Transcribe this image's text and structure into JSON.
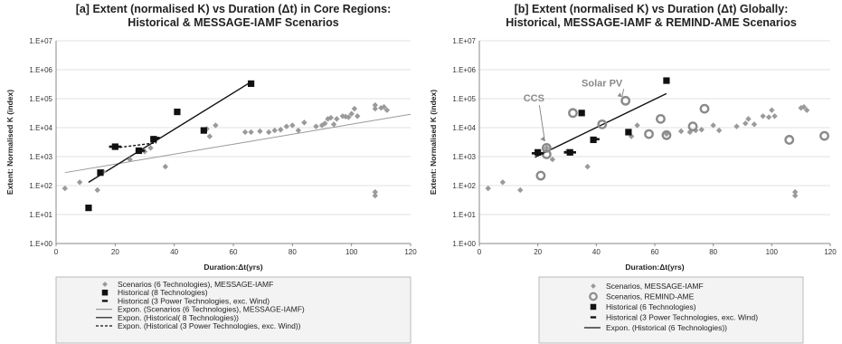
{
  "chart_data": [
    {
      "type": "scatter",
      "title": "[a] Extent (normalised K) vs Duration (Δt) in Core Regions:",
      "subtitle": "Historical & MESSAGE-IAMF Scenarios",
      "xlabel": "Duration:Δt(yrs)",
      "ylabel": "Extent:   Normalised K (index)",
      "xlim": [
        0,
        120
      ],
      "ylim": [
        1,
        10000000
      ],
      "yscale": "log",
      "xticks": [
        "0",
        "20",
        "40",
        "60",
        "80",
        "100",
        "120"
      ],
      "yticks": [
        "1.E+00",
        "1.E+01",
        "1.E+02",
        "1.E+03",
        "1.E+04",
        "1.E+05",
        "1.E+06",
        "1.E+07"
      ],
      "grid": "horizontal",
      "legend_position": "bottom",
      "series": [
        {
          "name": "Scenarios (6 Technologies), MESSAGE-IAMF",
          "kind": "points",
          "marker": "diamond",
          "color": "#9a9a9a",
          "points": [
            [
              3,
              80
            ],
            [
              8,
              130
            ],
            [
              14,
              70
            ],
            [
              16,
              300
            ],
            [
              25,
              800
            ],
            [
              30,
              1500
            ],
            [
              32,
              2000
            ],
            [
              37,
              450
            ],
            [
              51,
              9000
            ],
            [
              52,
              5000
            ],
            [
              54,
              12000
            ],
            [
              64,
              7000
            ],
            [
              66,
              7000
            ],
            [
              69,
              7500
            ],
            [
              72,
              7000
            ],
            [
              74,
              8000
            ],
            [
              76,
              8500
            ],
            [
              78,
              11000
            ],
            [
              80,
              12000
            ],
            [
              82,
              8000
            ],
            [
              84,
              15000
            ],
            [
              88,
              11000
            ],
            [
              90,
              12000
            ],
            [
              91,
              14000
            ],
            [
              92,
              20000
            ],
            [
              93,
              22000
            ],
            [
              94,
              13000
            ],
            [
              95,
              20000
            ],
            [
              97,
              25000
            ],
            [
              98,
              24000
            ],
            [
              99,
              23000
            ],
            [
              100,
              30000
            ],
            [
              101,
              45000
            ],
            [
              102,
              25000
            ],
            [
              108,
              60000
            ],
            [
              108,
              45000
            ],
            [
              110,
              48000
            ],
            [
              111,
              52000
            ],
            [
              112,
              40000
            ],
            [
              108,
              60
            ],
            [
              108,
              45
            ]
          ]
        },
        {
          "name": "Historical (8 Technologies)",
          "kind": "points",
          "marker": "square",
          "color": "#111111",
          "points": [
            [
              11,
              17
            ],
            [
              15,
              280
            ],
            [
              20,
              2200
            ],
            [
              28,
              1600
            ],
            [
              33,
              4000
            ],
            [
              41,
              35000
            ],
            [
              50,
              8000
            ],
            [
              66,
              330000
            ]
          ]
        },
        {
          "name": "Historical (3 Power Technologies, exc. Wind)",
          "kind": "points",
          "marker": "dash",
          "color": "#111111",
          "points": [
            [
              19,
              2200
            ],
            [
              20,
              2200
            ],
            [
              21,
              2200
            ],
            [
              28,
              1500
            ],
            [
              29,
              1600
            ],
            [
              33,
              4200
            ],
            [
              34,
              4400
            ]
          ]
        },
        {
          "name": "Expon. (Scenarios (6 Technologies), MESSAGE-IAMF)",
          "kind": "line",
          "style": "solid",
          "color": "#999999",
          "points": [
            [
              3,
              280
            ],
            [
              120,
              29000
            ]
          ]
        },
        {
          "name": "Expon. (Historical( 8 Technologies))",
          "kind": "line",
          "style": "solid",
          "color": "#111111",
          "points": [
            [
              11,
              130
            ],
            [
              66,
              380000
            ]
          ]
        },
        {
          "name": "Expon. (Historical (3 Power Technologies, exc. Wind))",
          "kind": "line",
          "style": "dashed",
          "color": "#111111",
          "points": [
            [
              20,
              2000
            ],
            [
              34,
              3000
            ]
          ]
        }
      ]
    },
    {
      "type": "scatter",
      "title": "[b] Extent (normalised K) vs Duration (Δt) Globally:",
      "subtitle": "Historical, MESSAGE-IAMF & REMIND-AME Scenarios",
      "xlabel": "Duration:Δt(yrs)",
      "ylabel": "Extent:   Normalised K (index)",
      "xlim": [
        0,
        120
      ],
      "ylim": [
        1,
        10000000
      ],
      "yscale": "log",
      "xticks": [
        "0",
        "20",
        "40",
        "60",
        "80",
        "100",
        "120"
      ],
      "yticks": [
        "1.E+00",
        "1.E+01",
        "1.E+02",
        "1.E+03",
        "1.E+04",
        "1.E+05",
        "1.E+06",
        "1.E+07"
      ],
      "grid": "horizontal",
      "legend_position": "bottom",
      "annotations": [
        {
          "text": "Solar PV",
          "x": 50,
          "y": 85000
        },
        {
          "text": "CCS",
          "x": 23,
          "y": 2200
        }
      ],
      "series": [
        {
          "name": "Scenarios, MESSAGE-IAMF",
          "kind": "points",
          "marker": "diamond",
          "color": "#9a9a9a",
          "points": [
            [
              3,
              80
            ],
            [
              8,
              130
            ],
            [
              14,
              70
            ],
            [
              23,
              2000
            ],
            [
              25,
              800
            ],
            [
              30,
              1500
            ],
            [
              37,
              450
            ],
            [
              52,
              5000
            ],
            [
              54,
              12000
            ],
            [
              64,
              6000
            ],
            [
              69,
              7500
            ],
            [
              72,
              7000
            ],
            [
              74,
              8000
            ],
            [
              76,
              8500
            ],
            [
              80,
              12000
            ],
            [
              82,
              8000
            ],
            [
              88,
              11000
            ],
            [
              91,
              14000
            ],
            [
              92,
              20000
            ],
            [
              94,
              13000
            ],
            [
              97,
              25000
            ],
            [
              99,
              23000
            ],
            [
              100,
              40000
            ],
            [
              101,
              25000
            ],
            [
              108,
              60
            ],
            [
              108,
              45
            ],
            [
              110,
              48000
            ],
            [
              111,
              52000
            ],
            [
              112,
              40000
            ]
          ]
        },
        {
          "name": "Scenarios, REMIND-AME",
          "kind": "points",
          "marker": "ring",
          "color": "#8a8a8a",
          "points": [
            [
              21,
              220
            ],
            [
              23,
              2000
            ],
            [
              23,
              1200
            ],
            [
              32,
              32000
            ],
            [
              42,
              13000
            ],
            [
              50,
              85000
            ],
            [
              58,
              6000
            ],
            [
              62,
              20000
            ],
            [
              64,
              5500
            ],
            [
              73,
              11000
            ],
            [
              77,
              45000
            ],
            [
              106,
              3800
            ],
            [
              118,
              5200
            ]
          ]
        },
        {
          "name": "Historical (6 Technologies)",
          "kind": "points",
          "marker": "square",
          "color": "#111111",
          "points": [
            [
              20,
              1400
            ],
            [
              31,
              1400
            ],
            [
              35,
              32000
            ],
            [
              39,
              3800
            ],
            [
              51,
              7000
            ],
            [
              64,
              420000
            ]
          ]
        },
        {
          "name": "Historical (3 Power Technologies, exc. Wind)",
          "kind": "points",
          "marker": "dash",
          "color": "#111111",
          "points": [
            [
              19,
              1300
            ],
            [
              21,
              1300
            ],
            [
              30,
              1400
            ],
            [
              32,
              1400
            ],
            [
              39,
              3800
            ],
            [
              40,
              4000
            ]
          ]
        },
        {
          "name": "Expon. (Historical (6 Technologies))",
          "kind": "line",
          "style": "solid",
          "color": "#111111",
          "points": [
            [
              19,
              950
            ],
            [
              64,
              150000
            ]
          ]
        }
      ]
    }
  ]
}
